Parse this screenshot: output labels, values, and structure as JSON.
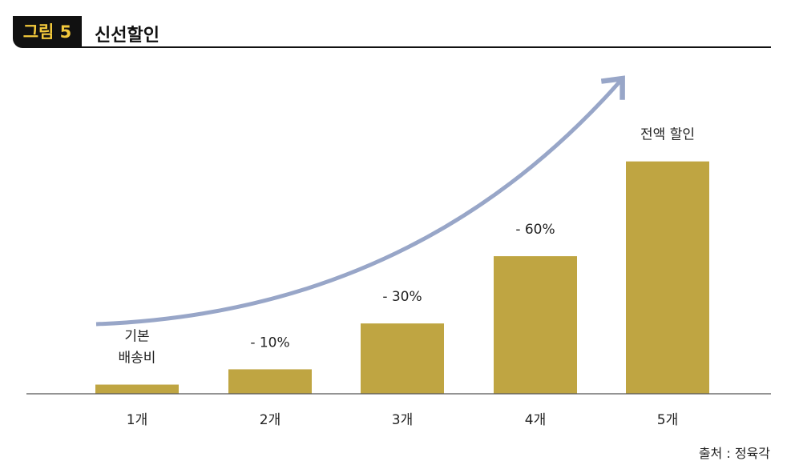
{
  "header": {
    "figure_label": "그림 5",
    "title": "신선할인"
  },
  "source": "출처 : 정육각",
  "colors": {
    "bar": "#bfa542",
    "arrow": "#98a6c8",
    "axis": "#555555",
    "badge_bg": "#111111",
    "badge_text": "#f3c93c"
  },
  "chart_data": {
    "type": "bar",
    "title": "신선할인",
    "categories": [
      "1개",
      "2개",
      "3개",
      "4개",
      "5개"
    ],
    "values": [
      3,
      8,
      23,
      45,
      76
    ],
    "data_labels": [
      [
        "기본",
        "배송비"
      ],
      [
        "- 10%"
      ],
      [
        "- 30%"
      ],
      [
        "- 60%"
      ],
      [
        "전액 할인"
      ]
    ],
    "ylim": [
      0,
      100
    ],
    "grid": false,
    "legend": "none",
    "arrow": "increasing trend arrow"
  }
}
